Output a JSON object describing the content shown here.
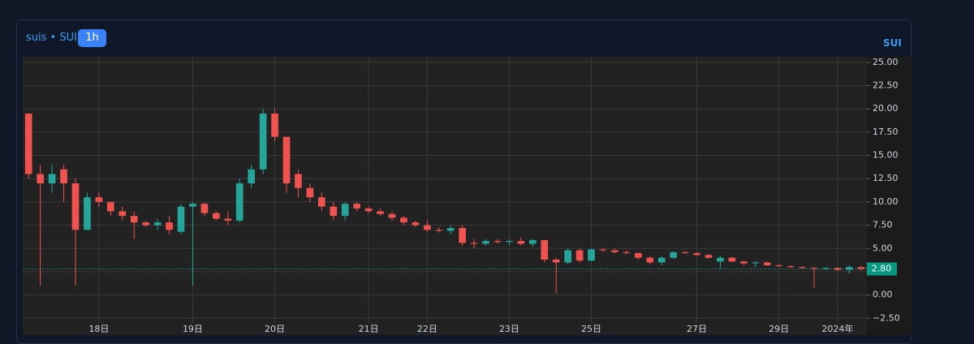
{
  "chart_data": {
    "type": "candlestick",
    "title": "suis • SUI",
    "interval": "1h",
    "symbol": "SUI",
    "categories": [
      null,
      null,
      null,
      null,
      null,
      null,
      "18日",
      null,
      null,
      null,
      null,
      null,
      null,
      null,
      "19日",
      null,
      null,
      null,
      null,
      null,
      null,
      "20日",
      null,
      null,
      null,
      null,
      null,
      null,
      null,
      "21日",
      null,
      null,
      null,
      null,
      "22日",
      null,
      null,
      null,
      null,
      null,
      null,
      "23日",
      null,
      null,
      null,
      null,
      null,
      null,
      "25日",
      null,
      null,
      null,
      null,
      null,
      null,
      null,
      null,
      "27日",
      null,
      null,
      null,
      null,
      null,
      null,
      "29日",
      null,
      null,
      null,
      null,
      "2024年",
      null,
      null
    ],
    "open": [
      19.5,
      13,
      12,
      13.5,
      12,
      7,
      10.5,
      10,
      9,
      8.5,
      7.8,
      7.5,
      7.8,
      6.8,
      9.5,
      9.8,
      8.8,
      8.2,
      8,
      12,
      13.5,
      19.5,
      17,
      13,
      11.5,
      10.5,
      9.5,
      8.5,
      9.8,
      9.3,
      9,
      8.7,
      8.3,
      7.8,
      7.5,
      7,
      6.9,
      7.2,
      5.6,
      5.5,
      5.8,
      5.7,
      5.8,
      5.5,
      5.9,
      3.8,
      3.5,
      4.8,
      3.7,
      4.9,
      4.8,
      4.6,
      4.5,
      4.0,
      3.5,
      4.0,
      4.6,
      4.5,
      4.3,
      3.6,
      4.0,
      3.6,
      3.4,
      3.5,
      3.2,
      3.1,
      3.0,
      2.9,
      2.8,
      2.9,
      2.7,
      3.0
    ],
    "high": [
      19.5,
      14,
      14,
      14,
      12.5,
      11,
      11,
      10,
      9.5,
      9,
      8,
      8.2,
      8.5,
      9.8,
      10,
      9.9,
      9,
      9,
      12.5,
      14,
      20,
      20,
      17,
      13.5,
      12,
      11,
      10,
      10,
      10,
      9.5,
      9.3,
      9,
      8.5,
      8,
      8,
      7.3,
      7.5,
      7.5,
      6,
      6,
      6,
      6,
      6.2,
      6,
      5.9,
      4,
      5,
      5,
      5,
      5,
      5,
      4.8,
      4.6,
      4.2,
      4.2,
      4.7,
      4.7,
      4.6,
      4.4,
      4.2,
      4.1,
      3.7,
      3.7,
      3.6,
      3.3,
      3.2,
      3.1,
      3.0,
      3.0,
      3.0,
      3.2,
      3.1
    ],
    "low": [
      12.5,
      1,
      11,
      10,
      1,
      7,
      9.5,
      8.5,
      8,
      6,
      7.3,
      7,
      6.5,
      6.5,
      1,
      8.5,
      8,
      7.5,
      7.8,
      11.5,
      13,
      16.5,
      11,
      10.5,
      10,
      9,
      8,
      8,
      9,
      8.8,
      8.5,
      8,
      7.5,
      7.3,
      6.8,
      6.7,
      6.5,
      5.3,
      5,
      5.3,
      5.5,
      5.4,
      5.3,
      5.2,
      3.5,
      0.2,
      3.3,
      3.5,
      3.6,
      4.6,
      4.5,
      4.4,
      3.8,
      3.3,
      3.2,
      3.9,
      4.4,
      4.2,
      3.9,
      2.8,
      3.5,
      3.2,
      3.0,
      3.1,
      3.0,
      2.9,
      2.8,
      0.8,
      2.7,
      2.6,
      2.3,
      2.6
    ],
    "close": [
      13,
      12,
      13,
      12,
      7,
      10.5,
      10,
      9,
      8.5,
      7.8,
      7.5,
      7.8,
      7,
      9.5,
      9.8,
      8.8,
      8.2,
      8,
      12,
      13.5,
      19.5,
      17,
      12,
      11.5,
      10.5,
      9.5,
      8.5,
      9.8,
      9.3,
      9,
      8.7,
      8.3,
      7.8,
      7.5,
      7,
      6.9,
      7.2,
      5.6,
      5.5,
      5.8,
      5.7,
      5.8,
      5.5,
      5.9,
      3.8,
      3.5,
      4.8,
      3.7,
      4.9,
      4.8,
      4.6,
      4.5,
      4.0,
      3.5,
      4.0,
      4.6,
      4.5,
      4.3,
      4.0,
      4.0,
      3.6,
      3.4,
      3.5,
      3.2,
      3.1,
      3.0,
      2.9,
      2.8,
      2.9,
      2.7,
      3.0,
      2.8
    ],
    "up_color": "#26a69a",
    "down_color": "#ef5350",
    "ylim": [
      -3,
      25.6
    ],
    "yticks": [
      {
        "value": -2.5,
        "label": "−2.50"
      },
      {
        "value": 0,
        "label": "0.00"
      },
      {
        "value": 2.5,
        "label": "2.50"
      },
      {
        "value": 5,
        "label": "5.00"
      },
      {
        "value": 7.5,
        "label": "7.50"
      },
      {
        "value": 10,
        "label": "10.00"
      },
      {
        "value": 12.5,
        "label": "12.50"
      },
      {
        "value": 15,
        "label": "15.00"
      },
      {
        "value": 17.5,
        "label": "17.50"
      },
      {
        "value": 20,
        "label": "20.00"
      },
      {
        "value": 22.5,
        "label": "22.50"
      },
      {
        "value": 25,
        "label": "25.00"
      }
    ],
    "last_price": {
      "value": 2.8,
      "label": "2.80"
    },
    "grid": true
  }
}
